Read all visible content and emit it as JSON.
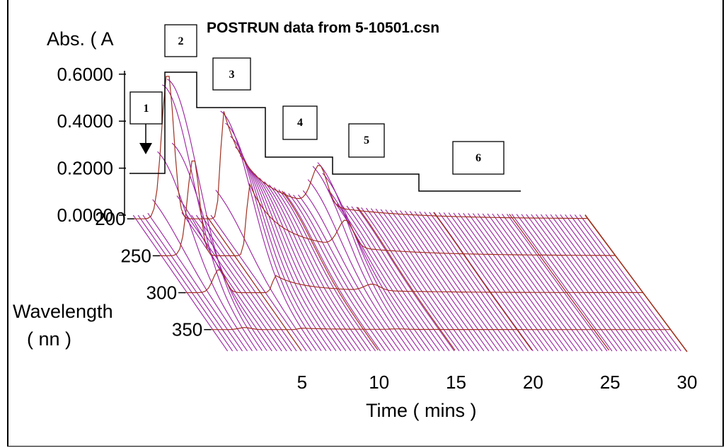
{
  "chart_data": {
    "type": "3d-waterfall",
    "title": "POSTRUN data from 5-10501.csn",
    "y_axis": {
      "label": "Abs. (   A",
      "ticks": [
        "0.6000",
        "0.4000",
        "0.2000",
        "0.0000"
      ],
      "tick_values": [
        0.6,
        0.4,
        0.2,
        0.0
      ],
      "range": [
        0.0,
        0.65
      ]
    },
    "wavelength_axis": {
      "label": "Wavelength",
      "unit": "(   nn )",
      "ticks": [
        "200",
        "250",
        "300",
        "350"
      ],
      "tick_values": [
        200,
        250,
        300,
        350
      ],
      "range": [
        195,
        380
      ]
    },
    "x_axis": {
      "label": "Time (    mins )",
      "ticks": [
        "5",
        "10",
        "15",
        "20",
        "25",
        "30"
      ],
      "tick_values": [
        5,
        10,
        15,
        20,
        25,
        30
      ],
      "range": [
        0,
        30
      ]
    },
    "colors": {
      "trace": "#9a1fa0",
      "grid": "#a03020",
      "gradient_line": "#000000"
    },
    "peaks": [
      {
        "time": 2.3,
        "abs_max": 0.63
      },
      {
        "time": 6.0,
        "abs_max": 0.46
      },
      {
        "time": 12.3,
        "abs_max": 0.17
      }
    ],
    "annotations": [
      {
        "id": "1",
        "text": "1",
        "has_arrow": true
      },
      {
        "id": "2",
        "text": "2"
      },
      {
        "id": "3",
        "text": "3"
      },
      {
        "id": "4",
        "text": "4"
      },
      {
        "id": "5",
        "text": "5"
      },
      {
        "id": "6",
        "text": "6"
      }
    ]
  }
}
